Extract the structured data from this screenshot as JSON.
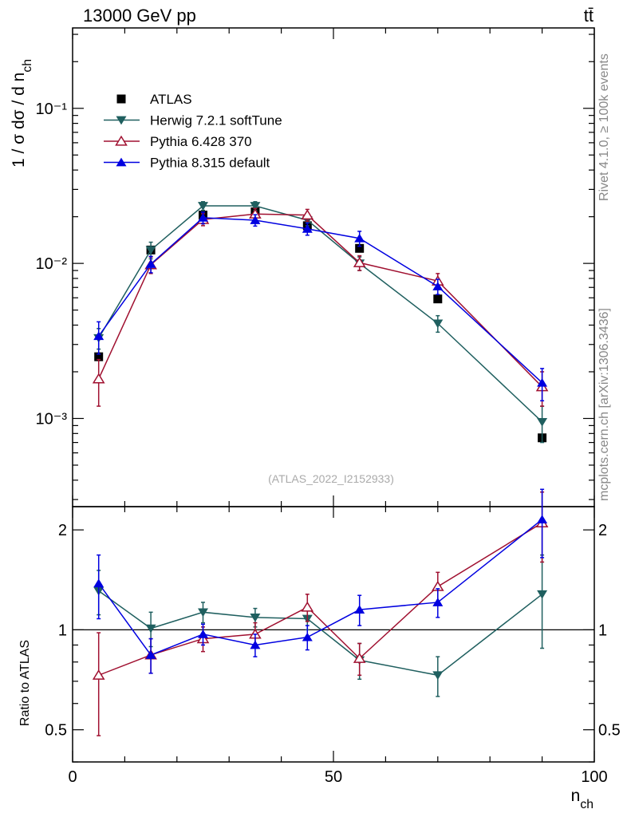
{
  "header": {
    "left": "13000 GeV pp",
    "right": "tt̄"
  },
  "side_text": {
    "top": "Rivet 4.1.0, ≥ 100k events",
    "bottom": "mcplots.cern.ch [arXiv:1306.3436]"
  },
  "watermark": "(ATLAS_2022_I2152933)",
  "colors": {
    "atlas": "#000000",
    "herwig": "#1f5f5f",
    "pythia6": "#a01030",
    "pythia8": "#0000e0"
  },
  "chart_data": [
    {
      "type": "scatter",
      "panel": "main",
      "yscale": "log",
      "ylabel": "1 / σ dσ / d n{ch}",
      "xlim": [
        0,
        100
      ],
      "ylim": [
        0.00027,
        0.33
      ],
      "y_ticks": [
        {
          "value": 0.1,
          "label": "10⁻¹"
        },
        {
          "value": 0.01,
          "label": "10⁻²"
        },
        {
          "value": 0.001,
          "label": "10⁻³"
        }
      ],
      "legend": {
        "position": "top-left"
      },
      "x": [
        5,
        15,
        25,
        35,
        45,
        55,
        70,
        90
      ],
      "series": [
        {
          "name": "ATLAS",
          "color": "#000000",
          "marker": "square",
          "values": [
            0.0025,
            0.0122,
            0.0205,
            0.0215,
            0.0175,
            0.0125,
            0.0059,
            0.00075
          ],
          "errors": [
            0.0001,
            0.0004,
            0.0006,
            0.0006,
            0.0005,
            0.0004,
            0.0002,
            4e-05
          ]
        },
        {
          "name": "Herwig 7.2.1 softTune",
          "color": "#1f5f5f",
          "marker": "triangle-down",
          "values": [
            0.0033,
            0.0122,
            0.0235,
            0.0235,
            0.019,
            0.01,
            0.0041,
            0.00095
          ],
          "errors": [
            0.0005,
            0.0015,
            0.0015,
            0.0015,
            0.0015,
            0.001,
            0.0005,
            0.00025
          ]
        },
        {
          "name": "Pythia 6.428 370",
          "color": "#a01030",
          "marker": "triangle-up-open",
          "values": [
            0.0018,
            0.0098,
            0.0192,
            0.0208,
            0.0205,
            0.0101,
            0.0077,
            0.0016
          ],
          "errors": [
            0.0006,
            0.0012,
            0.0017,
            0.0018,
            0.0018,
            0.0011,
            0.0009,
            0.0004
          ]
        },
        {
          "name": "Pythia 8.315 default",
          "color": "#0000e0",
          "marker": "triangle-up",
          "values": [
            0.0034,
            0.0099,
            0.0197,
            0.019,
            0.0167,
            0.0145,
            0.0071,
            0.0017
          ],
          "errors": [
            0.0008,
            0.0012,
            0.0017,
            0.0016,
            0.0015,
            0.0016,
            0.0008,
            0.0004
          ]
        }
      ]
    },
    {
      "type": "scatter",
      "panel": "ratio",
      "yscale": "log",
      "xlabel": "n{ch}",
      "ylabel": "Ratio to ATLAS",
      "xlim": [
        0,
        100
      ],
      "ylim": [
        0.4,
        2.35
      ],
      "x_ticks": [
        0,
        50,
        100
      ],
      "y_ticks": [
        {
          "value": 0.5,
          "label": "0.5"
        },
        {
          "value": 1,
          "label": "1"
        },
        {
          "value": 2,
          "label": "2"
        }
      ],
      "x": [
        5,
        15,
        25,
        35,
        45,
        55,
        70,
        90
      ],
      "series": [
        {
          "name": "Herwig 7.2.1 softTune",
          "color": "#1f5f5f",
          "marker": "triangle-down",
          "values": [
            1.31,
            1.01,
            1.13,
            1.09,
            1.08,
            0.81,
            0.73,
            1.28
          ],
          "errors": [
            0.2,
            0.12,
            0.08,
            0.07,
            0.08,
            0.1,
            0.1,
            0.4
          ]
        },
        {
          "name": "Pythia 6.428 370",
          "color": "#a01030",
          "marker": "triangle-up-open",
          "values": [
            0.73,
            0.84,
            0.94,
            0.97,
            1.17,
            0.82,
            1.35,
            2.1
          ],
          "errors": [
            0.25,
            0.1,
            0.08,
            0.08,
            0.11,
            0.09,
            0.14,
            0.5
          ]
        },
        {
          "name": "Pythia 8.315 default",
          "color": "#0000e0",
          "marker": "triangle-up",
          "values": [
            1.38,
            0.84,
            0.97,
            0.9,
            0.95,
            1.15,
            1.21,
            2.15
          ],
          "errors": [
            0.3,
            0.1,
            0.07,
            0.07,
            0.08,
            0.12,
            0.12,
            0.5
          ]
        }
      ]
    }
  ]
}
